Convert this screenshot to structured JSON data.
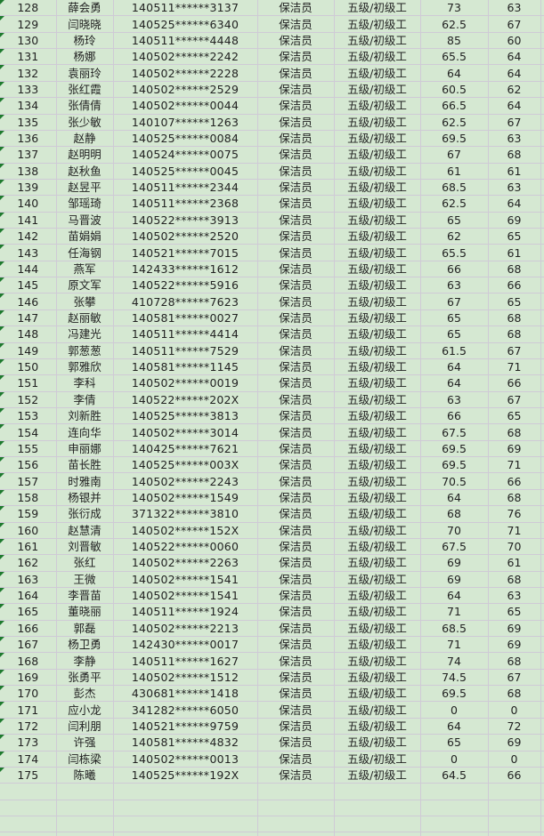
{
  "colors": {
    "sheet_background": "#d5e8d2",
    "gridline": "#cfcad6",
    "text": "#222222",
    "error_indicator_green": "#1e7a2e"
  },
  "sheet": {
    "empty_rows": 4,
    "rows": [
      {
        "seq": "128",
        "name": "薛会勇",
        "id": "140511******3137",
        "job": "保洁员",
        "grade": "五级/初级工",
        "score1": "73",
        "score2": "63"
      },
      {
        "seq": "129",
        "name": "闫晓晓",
        "id": "140525******6340",
        "job": "保洁员",
        "grade": "五级/初级工",
        "score1": "62.5",
        "score2": "67"
      },
      {
        "seq": "130",
        "name": "杨玲",
        "id": "140511******4448",
        "job": "保洁员",
        "grade": "五级/初级工",
        "score1": "85",
        "score2": "60"
      },
      {
        "seq": "131",
        "name": "杨娜",
        "id": "140502******2242",
        "job": "保洁员",
        "grade": "五级/初级工",
        "score1": "65.5",
        "score2": "64"
      },
      {
        "seq": "132",
        "name": "袁丽玲",
        "id": "140502******2228",
        "job": "保洁员",
        "grade": "五级/初级工",
        "score1": "64",
        "score2": "64"
      },
      {
        "seq": "133",
        "name": "张红霞",
        "id": "140502******2529",
        "job": "保洁员",
        "grade": "五级/初级工",
        "score1": "60.5",
        "score2": "62"
      },
      {
        "seq": "134",
        "name": "张倩倩",
        "id": "140502******0044",
        "job": "保洁员",
        "grade": "五级/初级工",
        "score1": "66.5",
        "score2": "64"
      },
      {
        "seq": "135",
        "name": "张少敏",
        "id": "140107******1263",
        "job": "保洁员",
        "grade": "五级/初级工",
        "score1": "62.5",
        "score2": "67"
      },
      {
        "seq": "136",
        "name": "赵静",
        "id": "140525******0084",
        "job": "保洁员",
        "grade": "五级/初级工",
        "score1": "69.5",
        "score2": "63"
      },
      {
        "seq": "137",
        "name": "赵明明",
        "id": "140524******0075",
        "job": "保洁员",
        "grade": "五级/初级工",
        "score1": "67",
        "score2": "68"
      },
      {
        "seq": "138",
        "name": "赵秋鱼",
        "id": "140525******0045",
        "job": "保洁员",
        "grade": "五级/初级工",
        "score1": "61",
        "score2": "61"
      },
      {
        "seq": "139",
        "name": "赵昱平",
        "id": "140511******2344",
        "job": "保洁员",
        "grade": "五级/初级工",
        "score1": "68.5",
        "score2": "63"
      },
      {
        "seq": "140",
        "name": "邹瑶琦",
        "id": "140511******2368",
        "job": "保洁员",
        "grade": "五级/初级工",
        "score1": "62.5",
        "score2": "64"
      },
      {
        "seq": "141",
        "name": "马晋波",
        "id": "140522******3913",
        "job": "保洁员",
        "grade": "五级/初级工",
        "score1": "65",
        "score2": "69"
      },
      {
        "seq": "142",
        "name": "苗娟娟",
        "id": "140502******2520",
        "job": "保洁员",
        "grade": "五级/初级工",
        "score1": "62",
        "score2": "65"
      },
      {
        "seq": "143",
        "name": "任海钢",
        "id": "140521******7015",
        "job": "保洁员",
        "grade": "五级/初级工",
        "score1": "65.5",
        "score2": "61"
      },
      {
        "seq": "144",
        "name": "燕军",
        "id": "142433******1612",
        "job": "保洁员",
        "grade": "五级/初级工",
        "score1": "66",
        "score2": "68"
      },
      {
        "seq": "145",
        "name": "原文军",
        "id": "140522******5916",
        "job": "保洁员",
        "grade": "五级/初级工",
        "score1": "63",
        "score2": "66"
      },
      {
        "seq": "146",
        "name": "张攀",
        "id": "410728******7623",
        "job": "保洁员",
        "grade": "五级/初级工",
        "score1": "67",
        "score2": "65"
      },
      {
        "seq": "147",
        "name": "赵丽敏",
        "id": "140581******0027",
        "job": "保洁员",
        "grade": "五级/初级工",
        "score1": "65",
        "score2": "68"
      },
      {
        "seq": "148",
        "name": "冯建光",
        "id": "140511******4414",
        "job": "保洁员",
        "grade": "五级/初级工",
        "score1": "65",
        "score2": "68"
      },
      {
        "seq": "149",
        "name": "郭葱葱",
        "id": "140511******7529",
        "job": "保洁员",
        "grade": "五级/初级工",
        "score1": "61.5",
        "score2": "67"
      },
      {
        "seq": "150",
        "name": "郭雅欣",
        "id": "140581******1145",
        "job": "保洁员",
        "grade": "五级/初级工",
        "score1": "64",
        "score2": "71"
      },
      {
        "seq": "151",
        "name": "李科",
        "id": "140502******0019",
        "job": "保洁员",
        "grade": "五级/初级工",
        "score1": "64",
        "score2": "66"
      },
      {
        "seq": "152",
        "name": "李倩",
        "id": "140522******202X",
        "job": "保洁员",
        "grade": "五级/初级工",
        "score1": "63",
        "score2": "67"
      },
      {
        "seq": "153",
        "name": "刘新胜",
        "id": "140525******3813",
        "job": "保洁员",
        "grade": "五级/初级工",
        "score1": "66",
        "score2": "65"
      },
      {
        "seq": "154",
        "name": "连向华",
        "id": "140502******3014",
        "job": "保洁员",
        "grade": "五级/初级工",
        "score1": "67.5",
        "score2": "68"
      },
      {
        "seq": "155",
        "name": "申丽娜",
        "id": "140425******7621",
        "job": "保洁员",
        "grade": "五级/初级工",
        "score1": "69.5",
        "score2": "69"
      },
      {
        "seq": "156",
        "name": "苗长胜",
        "id": "140525******003X",
        "job": "保洁员",
        "grade": "五级/初级工",
        "score1": "69.5",
        "score2": "71"
      },
      {
        "seq": "157",
        "name": "时雅南",
        "id": "140502******2243",
        "job": "保洁员",
        "grade": "五级/初级工",
        "score1": "70.5",
        "score2": "66"
      },
      {
        "seq": "158",
        "name": "杨银并",
        "id": "140502******1549",
        "job": "保洁员",
        "grade": "五级/初级工",
        "score1": "64",
        "score2": "68"
      },
      {
        "seq": "159",
        "name": "张衍成",
        "id": "371322******3810",
        "job": "保洁员",
        "grade": "五级/初级工",
        "score1": "68",
        "score2": "76"
      },
      {
        "seq": "160",
        "name": "赵慧清",
        "id": "140502******152X",
        "job": "保洁员",
        "grade": "五级/初级工",
        "score1": "70",
        "score2": "71"
      },
      {
        "seq": "161",
        "name": "刘晋敏",
        "id": "140522******0060",
        "job": "保洁员",
        "grade": "五级/初级工",
        "score1": "67.5",
        "score2": "70"
      },
      {
        "seq": "162",
        "name": "张红",
        "id": "140502******2263",
        "job": "保洁员",
        "grade": "五级/初级工",
        "score1": "69",
        "score2": "61"
      },
      {
        "seq": "163",
        "name": "王微",
        "id": "140502******1541",
        "job": "保洁员",
        "grade": "五级/初级工",
        "score1": "69",
        "score2": "68"
      },
      {
        "seq": "164",
        "name": "李晋苗",
        "id": "140502******1541",
        "job": "保洁员",
        "grade": "五级/初级工",
        "score1": "64",
        "score2": "63"
      },
      {
        "seq": "165",
        "name": "董晓丽",
        "id": "140511******1924",
        "job": "保洁员",
        "grade": "五级/初级工",
        "score1": "71",
        "score2": "65"
      },
      {
        "seq": "166",
        "name": "郭磊",
        "id": "140502******2213",
        "job": "保洁员",
        "grade": "五级/初级工",
        "score1": "68.5",
        "score2": "69"
      },
      {
        "seq": "167",
        "name": "杨卫勇",
        "id": "142430******0017",
        "job": "保洁员",
        "grade": "五级/初级工",
        "score1": "71",
        "score2": "69"
      },
      {
        "seq": "168",
        "name": "李静",
        "id": "140511******1627",
        "job": "保洁员",
        "grade": "五级/初级工",
        "score1": "74",
        "score2": "68"
      },
      {
        "seq": "169",
        "name": "张勇平",
        "id": "140502******1512",
        "job": "保洁员",
        "grade": "五级/初级工",
        "score1": "74.5",
        "score2": "67"
      },
      {
        "seq": "170",
        "name": "彭杰",
        "id": "430681******1418",
        "job": "保洁员",
        "grade": "五级/初级工",
        "score1": "69.5",
        "score2": "68"
      },
      {
        "seq": "171",
        "name": "应小龙",
        "id": "341282******6050",
        "job": "保洁员",
        "grade": "五级/初级工",
        "score1": "0",
        "score2": "0"
      },
      {
        "seq": "172",
        "name": "闫利朋",
        "id": "140521******9759",
        "job": "保洁员",
        "grade": "五级/初级工",
        "score1": "64",
        "score2": "72"
      },
      {
        "seq": "173",
        "name": "许强",
        "id": "140581******4832",
        "job": "保洁员",
        "grade": "五级/初级工",
        "score1": "65",
        "score2": "69"
      },
      {
        "seq": "174",
        "name": "闫栋梁",
        "id": "140502******0013",
        "job": "保洁员",
        "grade": "五级/初级工",
        "score1": "0",
        "score2": "0"
      },
      {
        "seq": "175",
        "name": "陈曦",
        "id": "140525******192X",
        "job": "保洁员",
        "grade": "五级/初级工",
        "score1": "64.5",
        "score2": "66"
      }
    ]
  }
}
